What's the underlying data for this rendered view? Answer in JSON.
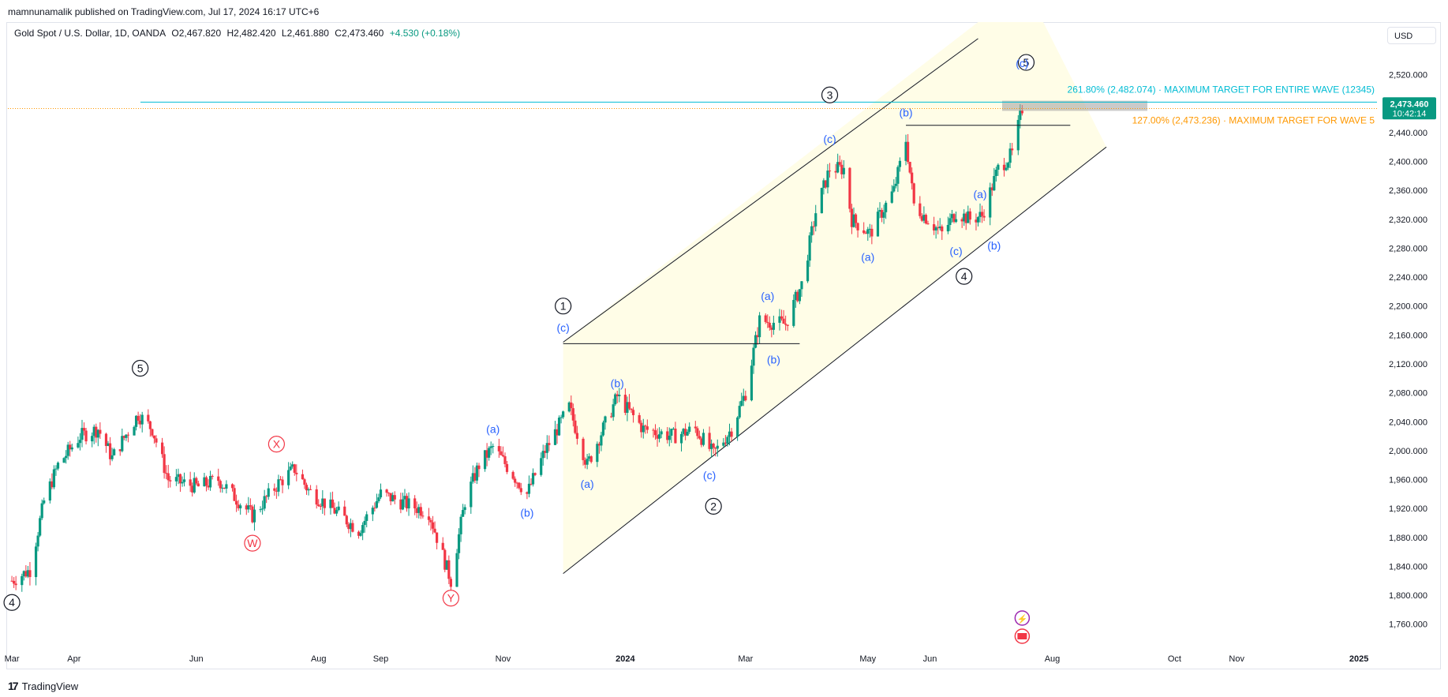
{
  "publisher": "mamnunamalik published on TradingView.com, Jul 17, 2024 16:17 UTC+6",
  "symbol": {
    "name": "Gold Spot / U.S. Dollar, 1D, OANDA",
    "open": "O2,467.820",
    "high": "H2,482.420",
    "low": "L2,461.880",
    "close": "C2,473.460",
    "change": "+4.530 (+0.18%)"
  },
  "currency_button": "USD",
  "footer_brand": "TradingView",
  "colors": {
    "up": "#089981",
    "down": "#f23645",
    "wave_label": "#2962ff",
    "cyan_level": "#00bcd4",
    "orange_level": "#ff9800",
    "channel_fill": "#fffde7",
    "red_label": "#f23645",
    "price_badge": "#089981"
  },
  "chart_data": {
    "type": "candlestick",
    "title": "Gold Spot / U.S. Dollar, 1D, OANDA",
    "y_ticks": [
      1760,
      1800,
      1840,
      1880,
      1920,
      1960,
      2000,
      2040,
      2080,
      2120,
      2160,
      2200,
      2240,
      2280,
      2320,
      2360,
      2400,
      2440,
      2480,
      2520
    ],
    "y_tick_labels": [
      "1,760.000",
      "1,800.000",
      "1,840.000",
      "1,880.000",
      "1,920.000",
      "1,960.000",
      "2,000.000",
      "2,040.000",
      "2,080.000",
      "2,120.000",
      "2,160.000",
      "2,200.000",
      "2,240.000",
      "2,280.000",
      "2,320.000",
      "2,360.000",
      "2,400.000",
      "2,440.000",
      "2,480.000",
      "2,520.000"
    ],
    "ylim": [
      1728,
      2560
    ],
    "x_ticks": [
      {
        "date": "2023-03-01",
        "label": "Mar"
      },
      {
        "date": "2023-04-01",
        "label": "Apr"
      },
      {
        "date": "2023-06-01",
        "label": "Jun"
      },
      {
        "date": "2023-08-01",
        "label": "Aug"
      },
      {
        "date": "2023-09-01",
        "label": "Sep"
      },
      {
        "date": "2023-11-01",
        "label": "Nov"
      },
      {
        "date": "2024-01-01",
        "label": "2024"
      },
      {
        "date": "2024-03-01",
        "label": "Mar"
      },
      {
        "date": "2024-05-01",
        "label": "May"
      },
      {
        "date": "2024-06-01",
        "label": "Jun"
      },
      {
        "date": "2024-08-01",
        "label": "Aug"
      },
      {
        "date": "2024-10-01",
        "label": "Oct"
      },
      {
        "date": "2024-11-01",
        "label": "Nov"
      },
      {
        "date": "2025-01-01",
        "label": "2025"
      }
    ],
    "xlim": [
      "2023-02-27",
      "2025-01-10"
    ],
    "price_path": [
      [
        "2023-03-01",
        1820
      ],
      [
        "2023-03-10",
        1835
      ],
      [
        "2023-03-17",
        1930
      ],
      [
        "2023-03-24",
        1980
      ],
      [
        "2023-04-04",
        2020
      ],
      [
        "2023-04-13",
        2030
      ],
      [
        "2023-04-20",
        1990
      ],
      [
        "2023-05-03",
        2050
      ],
      [
        "2023-05-10",
        2030
      ],
      [
        "2023-05-18",
        1960
      ],
      [
        "2023-06-02",
        1950
      ],
      [
        "2023-06-12",
        1960
      ],
      [
        "2023-06-29",
        1910
      ],
      [
        "2023-07-12",
        1955
      ],
      [
        "2023-07-20",
        1975
      ],
      [
        "2023-07-27",
        1945
      ],
      [
        "2023-08-10",
        1915
      ],
      [
        "2023-08-21",
        1890
      ],
      [
        "2023-09-01",
        1940
      ],
      [
        "2023-09-15",
        1925
      ],
      [
        "2023-09-25",
        1915
      ],
      [
        "2023-10-06",
        1820
      ],
      [
        "2023-10-13",
        1930
      ],
      [
        "2023-10-20",
        1980
      ],
      [
        "2023-10-27",
        2005
      ],
      [
        "2023-11-13",
        1940
      ],
      [
        "2023-11-22",
        2000
      ],
      [
        "2023-11-30",
        2040
      ],
      [
        "2023-12-04",
        2060
      ],
      [
        "2023-12-13",
        1980
      ],
      [
        "2023-12-28",
        2075
      ],
      [
        "2024-01-10",
        2030
      ],
      [
        "2024-01-25",
        2020
      ],
      [
        "2024-02-05",
        2030
      ],
      [
        "2024-02-14",
        1995
      ],
      [
        "2024-02-23",
        2030
      ],
      [
        "2024-03-01",
        2080
      ],
      [
        "2024-03-08",
        2180
      ],
      [
        "2024-03-21",
        2175
      ],
      [
        "2024-03-29",
        2230
      ],
      [
        "2024-04-05",
        2330
      ],
      [
        "2024-04-12",
        2390
      ],
      [
        "2024-04-19",
        2390
      ],
      [
        "2024-04-23",
        2320
      ],
      [
        "2024-05-02",
        2300
      ],
      [
        "2024-05-14",
        2360
      ],
      [
        "2024-05-20",
        2430
      ],
      [
        "2024-05-24",
        2340
      ],
      [
        "2024-06-07",
        2300
      ],
      [
        "2024-06-14",
        2330
      ],
      [
        "2024-06-21",
        2320
      ],
      [
        "2024-06-27",
        2325
      ],
      [
        "2024-07-05",
        2390
      ],
      [
        "2024-07-12",
        2410
      ],
      [
        "2024-07-17",
        2473.46
      ]
    ],
    "last_price_label": "2,473.460",
    "countdown_label": "10:42:14",
    "fib_levels": [
      {
        "price": 2482.074,
        "label": "261.80% (2,482.074) · MAXIMUM TARGET FOR ENTIRE WAVE (12345)",
        "color": "cyan"
      },
      {
        "price": 2473.236,
        "label": "127.00% (2,473.236) · MAXIMUM TARGET FOR WAVE 5",
        "color": "orange"
      }
    ],
    "channel": {
      "lower_start": [
        "2023-12-01",
        1830
      ],
      "lower_end": [
        "2024-08-28",
        2420
      ],
      "upper_start": [
        "2023-12-01",
        2150
      ],
      "upper_end": [
        "2024-06-25",
        2570
      ]
    },
    "horizontal_lines": [
      {
        "start": [
          "2023-12-01",
          2148
        ],
        "end": [
          "2024-03-28",
          2148
        ]
      },
      {
        "start": [
          "2024-05-20",
          2450
        ],
        "end": [
          "2024-08-10",
          2450
        ]
      }
    ],
    "wave_labels_circled": [
      {
        "text": "4",
        "date": "2023-03-01",
        "price": 1790
      },
      {
        "text": "5",
        "date": "2023-05-04",
        "price": 2114
      },
      {
        "text": "1",
        "date": "2023-12-01",
        "price": 2200
      },
      {
        "text": "2",
        "date": "2024-02-14",
        "price": 1923
      },
      {
        "text": "3",
        "date": "2024-04-12",
        "price": 2492
      },
      {
        "text": "4",
        "date": "2024-06-18",
        "price": 2241
      },
      {
        "text": "5",
        "date": "2024-07-19",
        "price": 2537
      }
    ],
    "wave_labels_red_circled": [
      {
        "text": "X",
        "date": "2023-07-11",
        "price": 2009
      },
      {
        "text": "W",
        "date": "2023-06-29",
        "price": 1872
      },
      {
        "text": "Y",
        "date": "2023-10-06",
        "price": 1796
      }
    ],
    "wave_labels_sub": [
      {
        "text": "(a)",
        "date": "2023-10-27",
        "price": 2030
      },
      {
        "text": "(b)",
        "date": "2023-11-13",
        "price": 1914
      },
      {
        "text": "(c)",
        "date": "2023-12-01",
        "price": 2170
      },
      {
        "text": "(a)",
        "date": "2023-12-13",
        "price": 1954
      },
      {
        "text": "(b)",
        "date": "2023-12-28",
        "price": 2093
      },
      {
        "text": "(c)",
        "date": "2024-02-12",
        "price": 1966
      },
      {
        "text": "(a)",
        "date": "2024-03-12",
        "price": 2214
      },
      {
        "text": "(b)",
        "date": "2024-03-15",
        "price": 2126
      },
      {
        "text": "(c)",
        "date": "2024-04-12",
        "price": 2431
      },
      {
        "text": "(a)",
        "date": "2024-05-01",
        "price": 2268
      },
      {
        "text": "(b)",
        "date": "2024-05-20",
        "price": 2468
      },
      {
        "text": "(c)",
        "date": "2024-06-14",
        "price": 2276
      },
      {
        "text": "(a)",
        "date": "2024-06-26",
        "price": 2355
      },
      {
        "text": "(b)",
        "date": "2024-07-03",
        "price": 2284
      },
      {
        "text": "(c)",
        "date": "2024-07-17",
        "price": 2536
      }
    ]
  }
}
